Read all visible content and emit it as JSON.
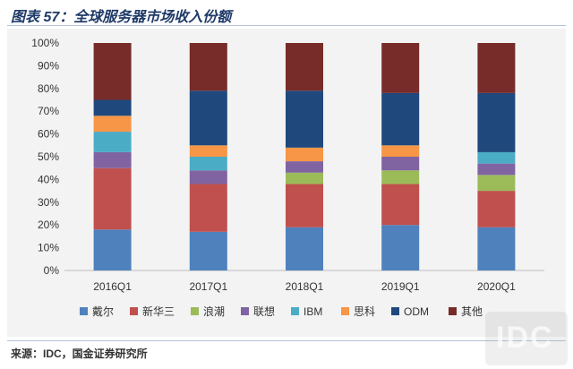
{
  "header": {
    "title": "图表 57：全球服务器市场收入份额"
  },
  "source": {
    "text": "来源：IDC，国金证券研究所"
  },
  "watermark": {
    "text": "IDC"
  },
  "chart_data": {
    "type": "bar",
    "stacked": true,
    "title": "",
    "xlabel": "",
    "ylabel": "",
    "ylim": [
      0,
      100
    ],
    "yticks": [
      "0%",
      "10%",
      "20%",
      "30%",
      "40%",
      "50%",
      "60%",
      "70%",
      "80%",
      "90%",
      "100%"
    ],
    "legend_position": "bottom",
    "categories": [
      "2016Q1",
      "2017Q1",
      "2018Q1",
      "2019Q1",
      "2020Q1"
    ],
    "series": [
      {
        "name": "戴尔",
        "color": "#4f81bd",
        "values": [
          18,
          17,
          19,
          20,
          19
        ]
      },
      {
        "name": "新华三",
        "color": "#c0504d",
        "values": [
          27,
          21,
          19,
          18,
          16
        ]
      },
      {
        "name": "浪潮",
        "color": "#9bbb59",
        "values": [
          0,
          0,
          5,
          6,
          7
        ]
      },
      {
        "name": "联想",
        "color": "#8064a2",
        "values": [
          7,
          6,
          5,
          6,
          5
        ]
      },
      {
        "name": "IBM",
        "color": "#4bacc6",
        "values": [
          9,
          6,
          0,
          0,
          5
        ]
      },
      {
        "name": "思科",
        "color": "#f79646",
        "values": [
          7,
          5,
          6,
          5,
          0
        ]
      },
      {
        "name": "ODM",
        "color": "#1f497d",
        "values": [
          7,
          24,
          25,
          23,
          26
        ]
      },
      {
        "name": "其他",
        "color": "#772c2a",
        "values": [
          25,
          21,
          21,
          22,
          22
        ]
      }
    ]
  }
}
